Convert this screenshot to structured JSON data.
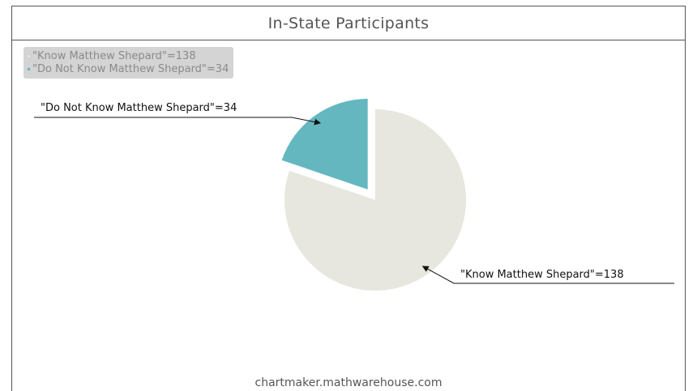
{
  "chart_data": {
    "type": "pie",
    "title": "In-State Participants",
    "slices": [
      {
        "label": "\"Know Matthew Shepard\"=138",
        "value": 138,
        "color": "#e7e7df"
      },
      {
        "label": "\"Do Not Know Matthew Shepard\"=34",
        "value": 34,
        "color": "#64b7bf",
        "exploded": true
      }
    ],
    "legend_position": "top-left"
  },
  "footer": {
    "watermark": "chartmaker.mathwarehouse.com"
  }
}
